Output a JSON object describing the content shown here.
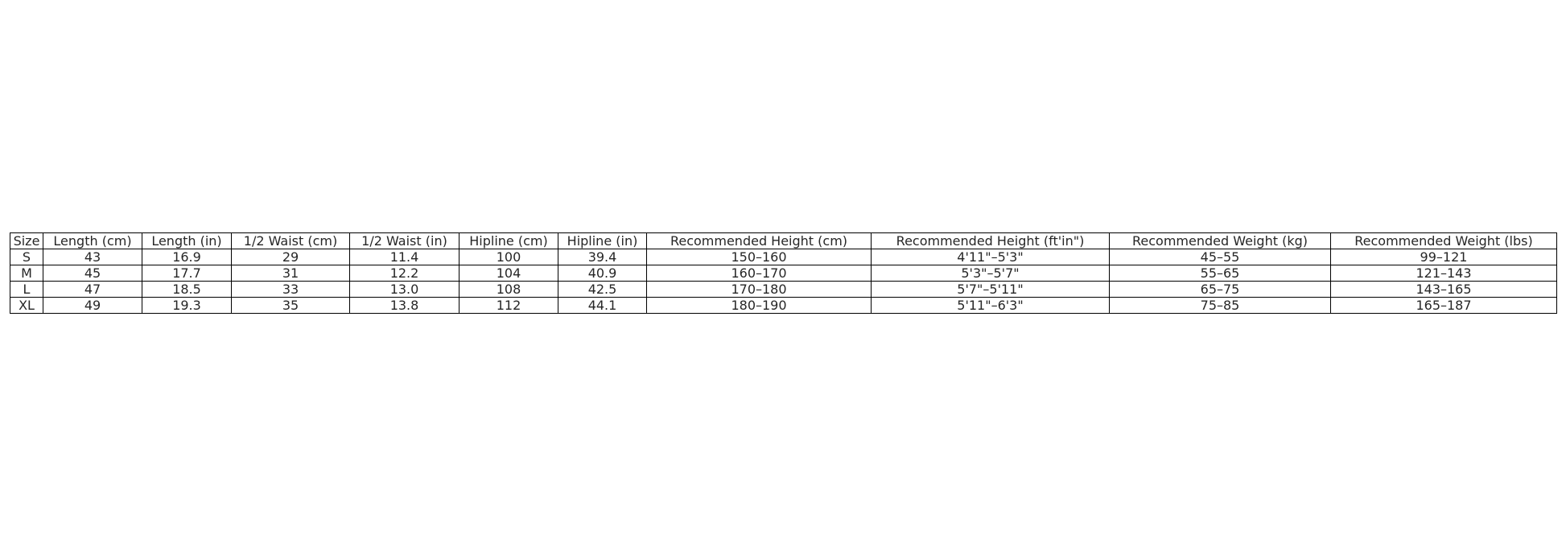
{
  "table": {
    "headers": [
      "Size",
      "Length (cm)",
      "Length (in)",
      "1/2 Waist (cm)",
      "1/2 Waist (in)",
      "Hipline (cm)",
      "Hipline (in)",
      "Recommended Height (cm)",
      "Recommended Height (ft'in\")",
      "Recommended Weight (kg)",
      "Recommended Weight (lbs)"
    ],
    "rows": [
      [
        "S",
        "43",
        "16.9",
        "29",
        "11.4",
        "100",
        "39.4",
        "150–160",
        "4'11\"–5'3\"",
        "45–55",
        "99–121"
      ],
      [
        "M",
        "45",
        "17.7",
        "31",
        "12.2",
        "104",
        "40.9",
        "160–170",
        "5'3\"–5'7\"",
        "55–65",
        "121–143"
      ],
      [
        "L",
        "47",
        "18.5",
        "33",
        "13.0",
        "108",
        "42.5",
        "170–180",
        "5'7\"–5'11\"",
        "65–75",
        "143–165"
      ],
      [
        "XL",
        "49",
        "19.3",
        "35",
        "13.8",
        "112",
        "44.1",
        "180–190",
        "5'11\"–6'3\"",
        "75–85",
        "165–187"
      ]
    ]
  }
}
